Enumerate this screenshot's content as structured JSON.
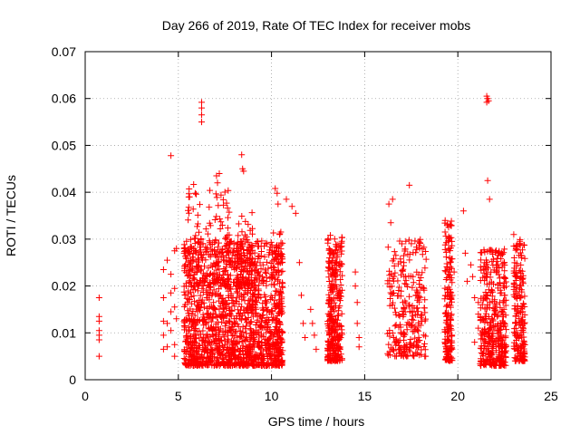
{
  "chart_data": {
    "type": "scatter",
    "title": "Day 266 of 2019, Rate Of TEC Index for receiver mobs",
    "xlabel": "GPS time / hours",
    "ylabel": "ROTI / TECUs",
    "xlim": [
      0,
      25
    ],
    "ylim": [
      0,
      0.07
    ],
    "x_ticks": [
      0,
      5,
      10,
      15,
      20,
      25
    ],
    "x_tick_labels": [
      "0",
      "5",
      "10",
      "15",
      "20",
      "25"
    ],
    "y_ticks": [
      0,
      0.01,
      0.02,
      0.03,
      0.04,
      0.05,
      0.06,
      0.07
    ],
    "y_tick_labels": [
      "0",
      "0.01",
      "0.02",
      "0.03",
      "0.04",
      "0.05",
      "0.06",
      "0.07"
    ],
    "grid": true,
    "marker": "+",
    "color": "#ff0000",
    "series": [
      {
        "name": "ROTI",
        "points": [
          [
            0.75,
            0.0175
          ],
          [
            0.75,
            0.0135
          ],
          [
            0.75,
            0.0125
          ],
          [
            0.75,
            0.0105
          ],
          [
            0.75,
            0.0095
          ],
          [
            0.75,
            0.0085
          ],
          [
            0.75,
            0.005
          ],
          [
            4.2,
            0.0235
          ],
          [
            4.2,
            0.0175
          ],
          [
            4.2,
            0.0125
          ],
          [
            4.2,
            0.0095
          ],
          [
            4.2,
            0.0065
          ],
          [
            4.4,
            0.0255
          ],
          [
            4.4,
            0.012
          ],
          [
            4.4,
            0.007
          ],
          [
            4.6,
            0.0478
          ],
          [
            4.6,
            0.0225
          ],
          [
            4.6,
            0.0185
          ],
          [
            4.6,
            0.0145
          ],
          [
            4.6,
            0.0105
          ],
          [
            4.8,
            0.0275
          ],
          [
            4.8,
            0.0195
          ],
          [
            4.8,
            0.0155
          ],
          [
            4.8,
            0.0075
          ],
          [
            4.8,
            0.005
          ],
          [
            4.9,
            0.028
          ],
          [
            4.9,
            0.013
          ],
          [
            6.25,
            0.0592
          ],
          [
            6.25,
            0.058
          ],
          [
            6.25,
            0.0565
          ],
          [
            6.25,
            0.055
          ],
          [
            7.05,
            0.0435
          ],
          [
            7.1,
            0.042
          ],
          [
            7.2,
            0.044
          ],
          [
            8.4,
            0.048
          ],
          [
            8.45,
            0.045
          ],
          [
            8.5,
            0.0445
          ],
          [
            10.2,
            0.0408
          ],
          [
            10.3,
            0.0398
          ],
          [
            10.35,
            0.0375
          ],
          [
            10.8,
            0.0385
          ],
          [
            11.1,
            0.037
          ],
          [
            11.3,
            0.0355
          ],
          [
            11.5,
            0.025
          ],
          [
            11.6,
            0.018
          ],
          [
            11.7,
            0.012
          ],
          [
            11.8,
            0.009
          ],
          [
            12.1,
            0.015
          ],
          [
            12.2,
            0.012
          ],
          [
            12.3,
            0.0095
          ],
          [
            12.4,
            0.0065
          ],
          [
            14.5,
            0.023
          ],
          [
            14.5,
            0.02
          ],
          [
            14.6,
            0.0165
          ],
          [
            14.6,
            0.012
          ],
          [
            14.7,
            0.009
          ],
          [
            14.7,
            0.007
          ],
          [
            16.3,
            0.0375
          ],
          [
            16.5,
            0.0385
          ],
          [
            16.4,
            0.0335
          ],
          [
            17.0,
            0.029
          ],
          [
            17.1,
            0.025
          ],
          [
            17.2,
            0.022
          ],
          [
            17.4,
            0.0415
          ],
          [
            19.7,
            0.0258
          ],
          [
            19.8,
            0.023
          ],
          [
            20.3,
            0.036
          ],
          [
            20.4,
            0.027
          ],
          [
            20.5,
            0.021
          ],
          [
            20.7,
            0.0245
          ],
          [
            20.8,
            0.022
          ],
          [
            20.9,
            0.0175
          ],
          [
            20.9,
            0.008
          ],
          [
            21.1,
            0.0165
          ],
          [
            21.1,
            0.014
          ],
          [
            21.1,
            0.011
          ],
          [
            21.55,
            0.0605
          ],
          [
            21.6,
            0.06
          ],
          [
            21.65,
            0.0595
          ],
          [
            21.55,
            0.0592
          ],
          [
            21.6,
            0.0425
          ],
          [
            21.7,
            0.0385
          ],
          [
            22.5,
            0.025
          ],
          [
            22.5,
            0.018
          ],
          [
            22.5,
            0.012
          ],
          [
            23.0,
            0.031
          ],
          [
            23.0,
            0.0285
          ]
        ],
        "clusters": [
          {
            "x_range": [
              5.3,
              10.6
            ],
            "y_range": [
              0.003,
              0.03
            ],
            "count": 1500
          },
          {
            "x_range": [
              5.5,
              7.8
            ],
            "y_range": [
              0.02,
              0.042
            ],
            "count": 120
          },
          {
            "x_range": [
              8.1,
              9.0
            ],
            "y_range": [
              0.02,
              0.036
            ],
            "count": 70
          },
          {
            "x_range": [
              10.0,
              10.6
            ],
            "y_range": [
              0.005,
              0.032
            ],
            "count": 80
          },
          {
            "x_range": [
              13.0,
              13.8
            ],
            "y_range": [
              0.004,
              0.031
            ],
            "count": 330
          },
          {
            "x_range": [
              16.2,
              18.3
            ],
            "y_range": [
              0.005,
              0.03
            ],
            "count": 260
          },
          {
            "x_range": [
              19.3,
              19.7
            ],
            "y_range": [
              0.004,
              0.034
            ],
            "count": 170
          },
          {
            "x_range": [
              21.2,
              22.6
            ],
            "y_range": [
              0.003,
              0.028
            ],
            "count": 380
          },
          {
            "x_range": [
              23.0,
              23.6
            ],
            "y_range": [
              0.004,
              0.03
            ],
            "count": 190
          }
        ]
      }
    ]
  }
}
